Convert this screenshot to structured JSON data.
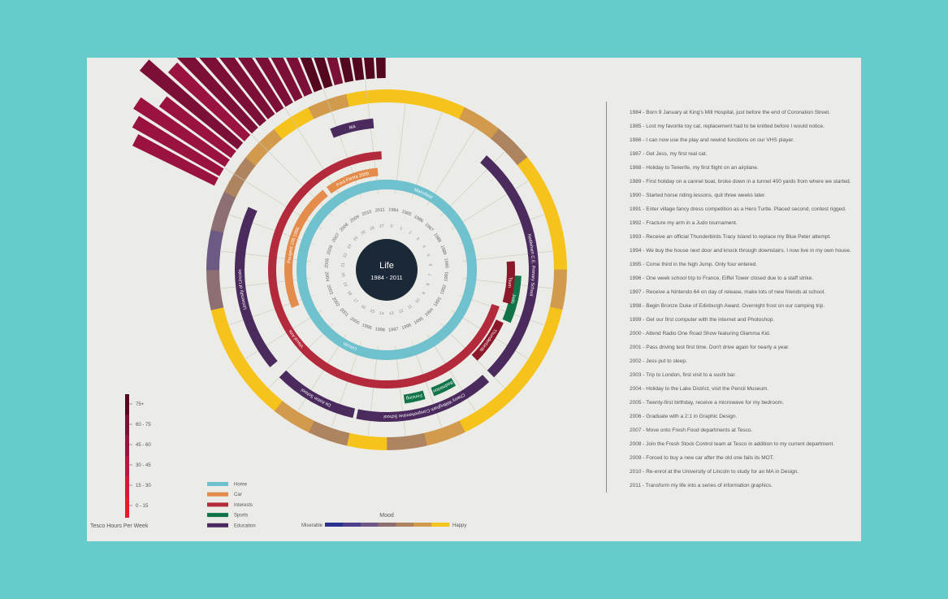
{
  "center": {
    "title": "Life",
    "subtitle": "1984 - 2011"
  },
  "years": [
    "1984",
    "1985",
    "1986",
    "1987",
    "1988",
    "1989",
    "1990",
    "1991",
    "1992",
    "1993",
    "1994",
    "1995",
    "1996",
    "1997",
    "1998",
    "1999",
    "2000",
    "2001",
    "2002",
    "2003",
    "2004",
    "2005",
    "2006",
    "2007",
    "2008",
    "2009",
    "2010",
    "2011"
  ],
  "ages": [
    "0",
    "1",
    "2",
    "3",
    "4",
    "5",
    "6",
    "7",
    "8",
    "9",
    "10",
    "11",
    "12",
    "13",
    "14",
    "15",
    "16",
    "17",
    "18",
    "19",
    "20",
    "21",
    "22",
    "23",
    "24",
    "25",
    "26",
    "27"
  ],
  "homes": [
    {
      "label": "Mansfield",
      "from": 0,
      "to": 4
    },
    {
      "label": "Lincoln",
      "from": 4,
      "to": 28
    }
  ],
  "cars": [
    {
      "label": "Ford Fiesta 2009",
      "from": 25.2,
      "to": 27.6
    },
    {
      "label": "Peugeot 106 1996",
      "from": 19.3,
      "to": 25
    }
  ],
  "interests": [
    {
      "label": "Visual Arts",
      "from": 8.4,
      "to": 27.8
    },
    {
      "label": "Thunderbirds",
      "from": 8.9,
      "to": 10.5
    },
    {
      "label": "Tsum",
      "from": 6.7,
      "to": 8.2
    }
  ],
  "sports": [
    {
      "label": "Judo",
      "from": 7.2,
      "to": 8.8
    },
    {
      "label": "Badminton",
      "from": 11.6,
      "to": 12.4
    },
    {
      "label": "Fencing",
      "from": 12.7,
      "to": 13.4
    }
  ],
  "education": [
    {
      "label": "Nettleham C.E. Primary School",
      "from": 3.2,
      "to": 10.5
    },
    {
      "label": "Cherry Willingham Comprehensive School",
      "from": 10.7,
      "to": 14.9
    },
    {
      "label": "De Aston School",
      "from": 15,
      "to": 17.5
    },
    {
      "label": "University of Lincoln",
      "from": 17.9,
      "to": 22.9
    },
    {
      "label": "MA",
      "from": 26.3,
      "to": 27.6
    }
  ],
  "mood": [
    6,
    6,
    5,
    4,
    6,
    6,
    6,
    5,
    6,
    6,
    6,
    6,
    5,
    4,
    6,
    4,
    5,
    6,
    6,
    6,
    3,
    2,
    3,
    4,
    5,
    6,
    5,
    6
  ],
  "tesco_hours": [
    0,
    0,
    0,
    0,
    0,
    0,
    0,
    0,
    0,
    0,
    0,
    0,
    0,
    0,
    0,
    0,
    0,
    0,
    0,
    0,
    0,
    0,
    0,
    55,
    62,
    68,
    76,
    82
  ],
  "tesco_legend": {
    "title": "Tesco Hours Per Week",
    "ticks": [
      "75+",
      "60 - 75",
      "45 - 60",
      "30 - 45",
      "15 - 30",
      "0 - 15"
    ]
  },
  "legend": [
    {
      "label": "Home",
      "color": "#6ec1cd"
    },
    {
      "label": "Car",
      "color": "#e38c4b"
    },
    {
      "label": "Interests",
      "color": "#b42a3d"
    },
    {
      "label": "Sports",
      "color": "#107448"
    },
    {
      "label": "Education",
      "color": "#4b2a5e"
    }
  ],
  "mood_scale": {
    "title": "Mood",
    "low_label": "Miserable",
    "high_label": "Happy",
    "colors": [
      "#2a3190",
      "#4b3f8e",
      "#6c5a84",
      "#8d6e73",
      "#ae835f",
      "#d19a4d",
      "#f5c31b"
    ]
  },
  "events": [
    "1984 - Born 9 January at King's Mill Hospital, just before the end of Coronation Street.",
    "1985 - Lost my favorite toy cat, replacement had to be knitted before I would notice.",
    "1986 - I can now use the play and rewind functions on our VHS player.",
    "1987 - Get Jess, my first real cat.",
    "1988 - Holiday to Tenerife, my first flight on an airplane.",
    "1989 - First holiday on a cannel boat, broke down in a tunnel 400 yards from where we started.",
    "1990 - Started horse riding lessons, quit three weeks later.",
    "1991 - Enter village fancy dress competition as a Hero Turtle. Placed second, contest rigged.",
    "1992 - Fracture my arm in a Judo tournament.",
    "1993 - Receive an official Thunderbirds Tracy Island to replace my Blue Peter attempt.",
    "1994 - We buy the house next door and knock through downstairs. I now live in my own house.",
    "1995 - Come third in the high Jump. Only four entered.",
    "1996 - One week school trip to France, Eiffel Tower closed due to a staff strike.",
    "1997 - Receive a Nintendo 64 on day of release, make lots of new friends at school.",
    "1998 - Begin Bronze Duke of Edinburgh Award. Overnight frost on our camping trip.",
    "1999 - Get our first computer with the internet and Photoshop.",
    "2000 - Attend Radio One Road Show featuring Glamma Kid.",
    "2001 - Pass driving test first time. Don't drive again for nearly a year.",
    "2002 - Jess put to sleep.",
    "2003 - Trip to London, first visit to a sushi bar.",
    "2004 - Holiday to the Lake District, visit the Pencil Museum.",
    "2005 - Twenty-first birthday, receive a microwave for my bedroom.",
    "2006 - Graduate with a 2:1 in Graphic Design.",
    "2007 - Move onto Fresh Food departments at Tesco.",
    "2008 - Join the Fresh Stock Control team at Tesco in addition to my current department.",
    "2009 - Forced to buy a new car after the old one fails its MOT.",
    "2010 - Re-enrol at the University of Lincoln to study for an MA in Design.",
    "2011 - Transform my life into a series of information graphics."
  ]
}
